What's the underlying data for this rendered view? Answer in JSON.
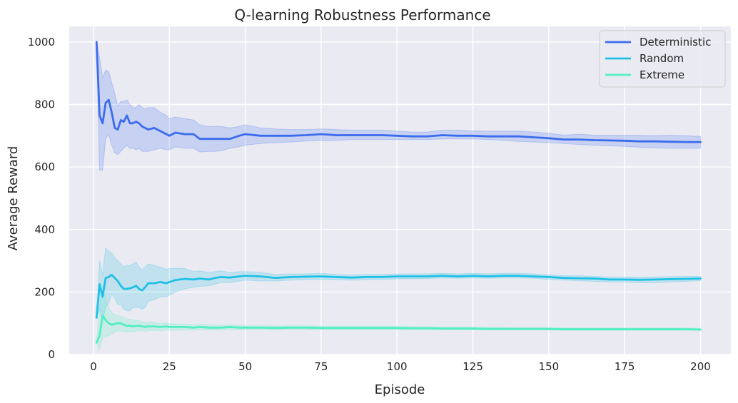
{
  "colors": {
    "background": "#eaeaf2",
    "grid": "#ffffff",
    "deterministic": "#3c6cee",
    "random": "#1fc0e6",
    "extreme": "#52efc4"
  },
  "chart_data": {
    "type": "line",
    "title": "Q-learning Robustness Performance",
    "xlabel": "Episode",
    "ylabel": "Average Reward",
    "xlim": [
      -8,
      210
    ],
    "ylim": [
      0,
      1050
    ],
    "xticks": [
      0,
      25,
      50,
      75,
      100,
      125,
      150,
      175,
      200
    ],
    "yticks": [
      0,
      200,
      400,
      600,
      800,
      1000
    ],
    "grid": true,
    "legend": {
      "placement": "top-right"
    },
    "series": [
      {
        "name": "Deterministic",
        "color": "#3c6cee",
        "x": [
          1,
          2,
          3,
          4,
          5,
          6,
          7,
          8,
          9,
          10,
          11,
          12,
          13,
          14,
          15,
          16,
          17,
          18,
          20,
          22,
          24,
          25,
          27,
          30,
          33,
          35,
          38,
          40,
          42,
          45,
          48,
          50,
          55,
          60,
          65,
          70,
          75,
          80,
          85,
          90,
          95,
          100,
          105,
          110,
          115,
          120,
          125,
          130,
          135,
          140,
          145,
          150,
          155,
          160,
          165,
          170,
          175,
          180,
          185,
          190,
          195,
          200
        ],
        "y": [
          1000,
          765,
          740,
          805,
          815,
          775,
          725,
          720,
          750,
          745,
          765,
          740,
          740,
          745,
          740,
          730,
          725,
          720,
          725,
          715,
          705,
          700,
          710,
          705,
          705,
          690,
          690,
          690,
          690,
          690,
          700,
          705,
          700,
          700,
          700,
          702,
          705,
          702,
          702,
          702,
          702,
          700,
          698,
          698,
          702,
          700,
          700,
          698,
          698,
          698,
          695,
          692,
          688,
          688,
          686,
          685,
          684,
          682,
          682,
          681,
          680,
          680
        ],
        "lower": [
          1000,
          590,
          590,
          690,
          705,
          670,
          645,
          640,
          650,
          660,
          670,
          660,
          660,
          655,
          660,
          650,
          650,
          650,
          655,
          660,
          655,
          655,
          665,
          660,
          660,
          648,
          650,
          650,
          652,
          660,
          665,
          670,
          675,
          678,
          680,
          683,
          685,
          685,
          688,
          688,
          688,
          688,
          688,
          688,
          690,
          690,
          690,
          688,
          685,
          682,
          680,
          678,
          675,
          672,
          670,
          668,
          666,
          663,
          661,
          660,
          660,
          660
        ],
        "upper": [
          1000,
          950,
          885,
          910,
          905,
          870,
          835,
          795,
          810,
          810,
          815,
          800,
          790,
          790,
          800,
          790,
          785,
          790,
          790,
          775,
          765,
          755,
          760,
          755,
          750,
          735,
          730,
          730,
          730,
          725,
          730,
          735,
          725,
          722,
          720,
          720,
          722,
          720,
          718,
          718,
          718,
          715,
          712,
          712,
          718,
          718,
          715,
          715,
          715,
          715,
          712,
          708,
          702,
          705,
          702,
          702,
          702,
          702,
          700,
          702,
          700,
          698
        ]
      },
      {
        "name": "Random",
        "color": "#1fc0e6",
        "x": [
          1,
          2,
          3,
          4,
          5,
          6,
          7,
          8,
          9,
          10,
          11,
          12,
          13,
          14,
          15,
          16,
          17,
          18,
          20,
          22,
          24,
          25,
          27,
          30,
          33,
          35,
          38,
          40,
          42,
          45,
          48,
          50,
          55,
          60,
          65,
          70,
          75,
          80,
          85,
          90,
          95,
          100,
          105,
          110,
          115,
          120,
          125,
          130,
          135,
          140,
          145,
          150,
          155,
          160,
          165,
          170,
          175,
          180,
          185,
          190,
          195,
          200
        ],
        "y": [
          118,
          225,
          185,
          245,
          248,
          255,
          245,
          235,
          220,
          210,
          210,
          212,
          215,
          220,
          210,
          205,
          215,
          228,
          228,
          232,
          228,
          232,
          238,
          242,
          240,
          243,
          240,
          245,
          248,
          246,
          250,
          252,
          250,
          245,
          248,
          249,
          250,
          248,
          246,
          248,
          248,
          250,
          250,
          250,
          252,
          250,
          252,
          250,
          252,
          252,
          250,
          248,
          245,
          244,
          243,
          240,
          240,
          239,
          240,
          241,
          242,
          243
        ],
        "lower": [
          118,
          145,
          110,
          150,
          165,
          195,
          180,
          160,
          160,
          145,
          140,
          140,
          150,
          150,
          150,
          145,
          150,
          170,
          175,
          185,
          185,
          190,
          200,
          210,
          215,
          218,
          220,
          225,
          230,
          230,
          235,
          238,
          235,
          235,
          238,
          240,
          240,
          240,
          238,
          240,
          240,
          242,
          242,
          243,
          245,
          244,
          245,
          244,
          245,
          245,
          244,
          240,
          238,
          236,
          234,
          232,
          232,
          230,
          230,
          232,
          234,
          236
        ],
        "upper": [
          118,
          300,
          255,
          340,
          330,
          325,
          310,
          300,
          290,
          280,
          285,
          285,
          290,
          295,
          280,
          270,
          280,
          290,
          285,
          280,
          272,
          275,
          276,
          275,
          265,
          268,
          262,
          265,
          268,
          262,
          265,
          265,
          263,
          256,
          258,
          258,
          260,
          256,
          254,
          256,
          256,
          258,
          258,
          258,
          260,
          258,
          260,
          258,
          260,
          260,
          258,
          255,
          252,
          252,
          250,
          248,
          248,
          247,
          248,
          249,
          250,
          250
        ]
      },
      {
        "name": "Extreme",
        "color": "#52efc4",
        "x": [
          1,
          2,
          3,
          4,
          5,
          6,
          7,
          8,
          9,
          10,
          11,
          12,
          13,
          14,
          15,
          16,
          17,
          18,
          20,
          22,
          24,
          25,
          27,
          30,
          33,
          35,
          38,
          40,
          42,
          45,
          48,
          50,
          55,
          60,
          65,
          70,
          75,
          80,
          85,
          90,
          95,
          100,
          105,
          110,
          115,
          120,
          125,
          130,
          135,
          140,
          145,
          150,
          155,
          160,
          165,
          170,
          175,
          180,
          185,
          190,
          195,
          200
        ],
        "y": [
          38,
          60,
          125,
          110,
          100,
          95,
          98,
          100,
          100,
          95,
          92,
          92,
          90,
          92,
          92,
          90,
          88,
          90,
          90,
          88,
          90,
          88,
          88,
          88,
          86,
          88,
          86,
          86,
          86,
          88,
          86,
          86,
          86,
          85,
          86,
          86,
          85,
          85,
          85,
          85,
          85,
          85,
          84,
          84,
          83,
          83,
          83,
          82,
          82,
          82,
          82,
          82,
          81,
          81,
          81,
          81,
          81,
          81,
          81,
          81,
          81,
          80
        ],
        "lower": [
          38,
          15,
          55,
          55,
          60,
          65,
          72,
          75,
          75,
          74,
          72,
          74,
          72,
          74,
          76,
          76,
          74,
          76,
          77,
          76,
          78,
          77,
          78,
          78,
          78,
          79,
          78,
          79,
          79,
          80,
          79,
          80,
          80,
          79,
          80,
          80,
          80,
          80,
          80,
          80,
          80,
          80,
          79,
          79,
          79,
          79,
          79,
          78,
          78,
          78,
          78,
          78,
          77,
          77,
          77,
          77,
          77,
          77,
          77,
          77,
          77,
          77
        ],
        "upper": [
          38,
          150,
          225,
          175,
          150,
          135,
          128,
          125,
          122,
          118,
          114,
          112,
          110,
          110,
          108,
          105,
          103,
          104,
          103,
          100,
          101,
          99,
          98,
          98,
          95,
          97,
          94,
          94,
          93,
          95,
          93,
          92,
          92,
          91,
          92,
          92,
          90,
          90,
          90,
          90,
          90,
          90,
          89,
          89,
          88,
          88,
          88,
          87,
          87,
          86,
          86,
          86,
          85,
          85,
          85,
          85,
          85,
          85,
          85,
          85,
          85,
          84
        ]
      }
    ]
  }
}
